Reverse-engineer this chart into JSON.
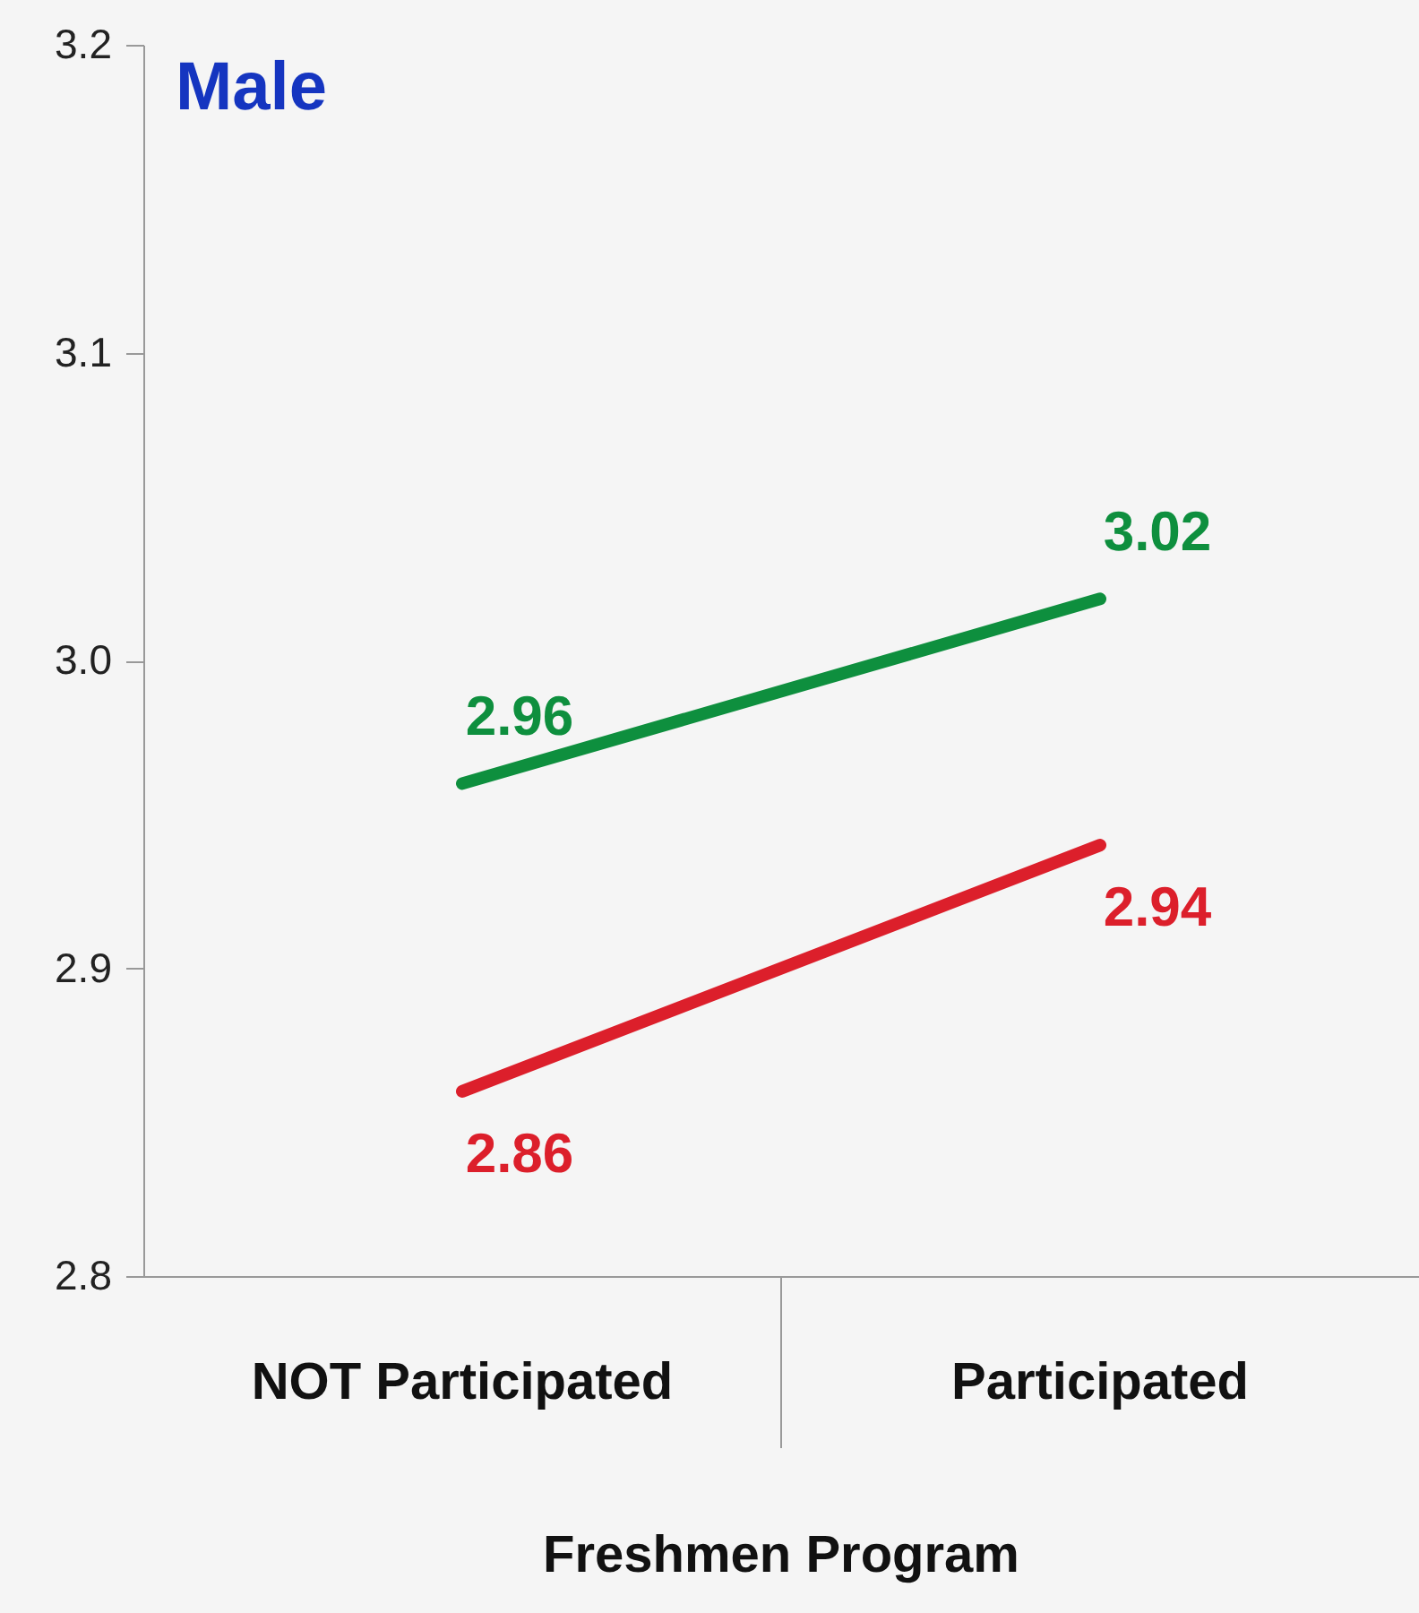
{
  "chart_data": {
    "type": "line",
    "title": "Male",
    "xlabel": "Freshmen Program",
    "categories": [
      "NOT Participated",
      "Participated"
    ],
    "series": [
      {
        "color": "#0e8f3e",
        "values": [
          2.96,
          3.02
        ]
      },
      {
        "color": "#dc1f2b",
        "values": [
          2.86,
          2.94
        ]
      }
    ],
    "ylim": [
      2.8,
      3.2
    ],
    "yticks": [
      2.8,
      2.9,
      {
        "value": 3.0,
        "label": "3.0"
      },
      3.1,
      3.2
    ],
    "data_labels": true,
    "grid": false,
    "legend": false,
    "marker": "none",
    "line_style": "solid"
  }
}
